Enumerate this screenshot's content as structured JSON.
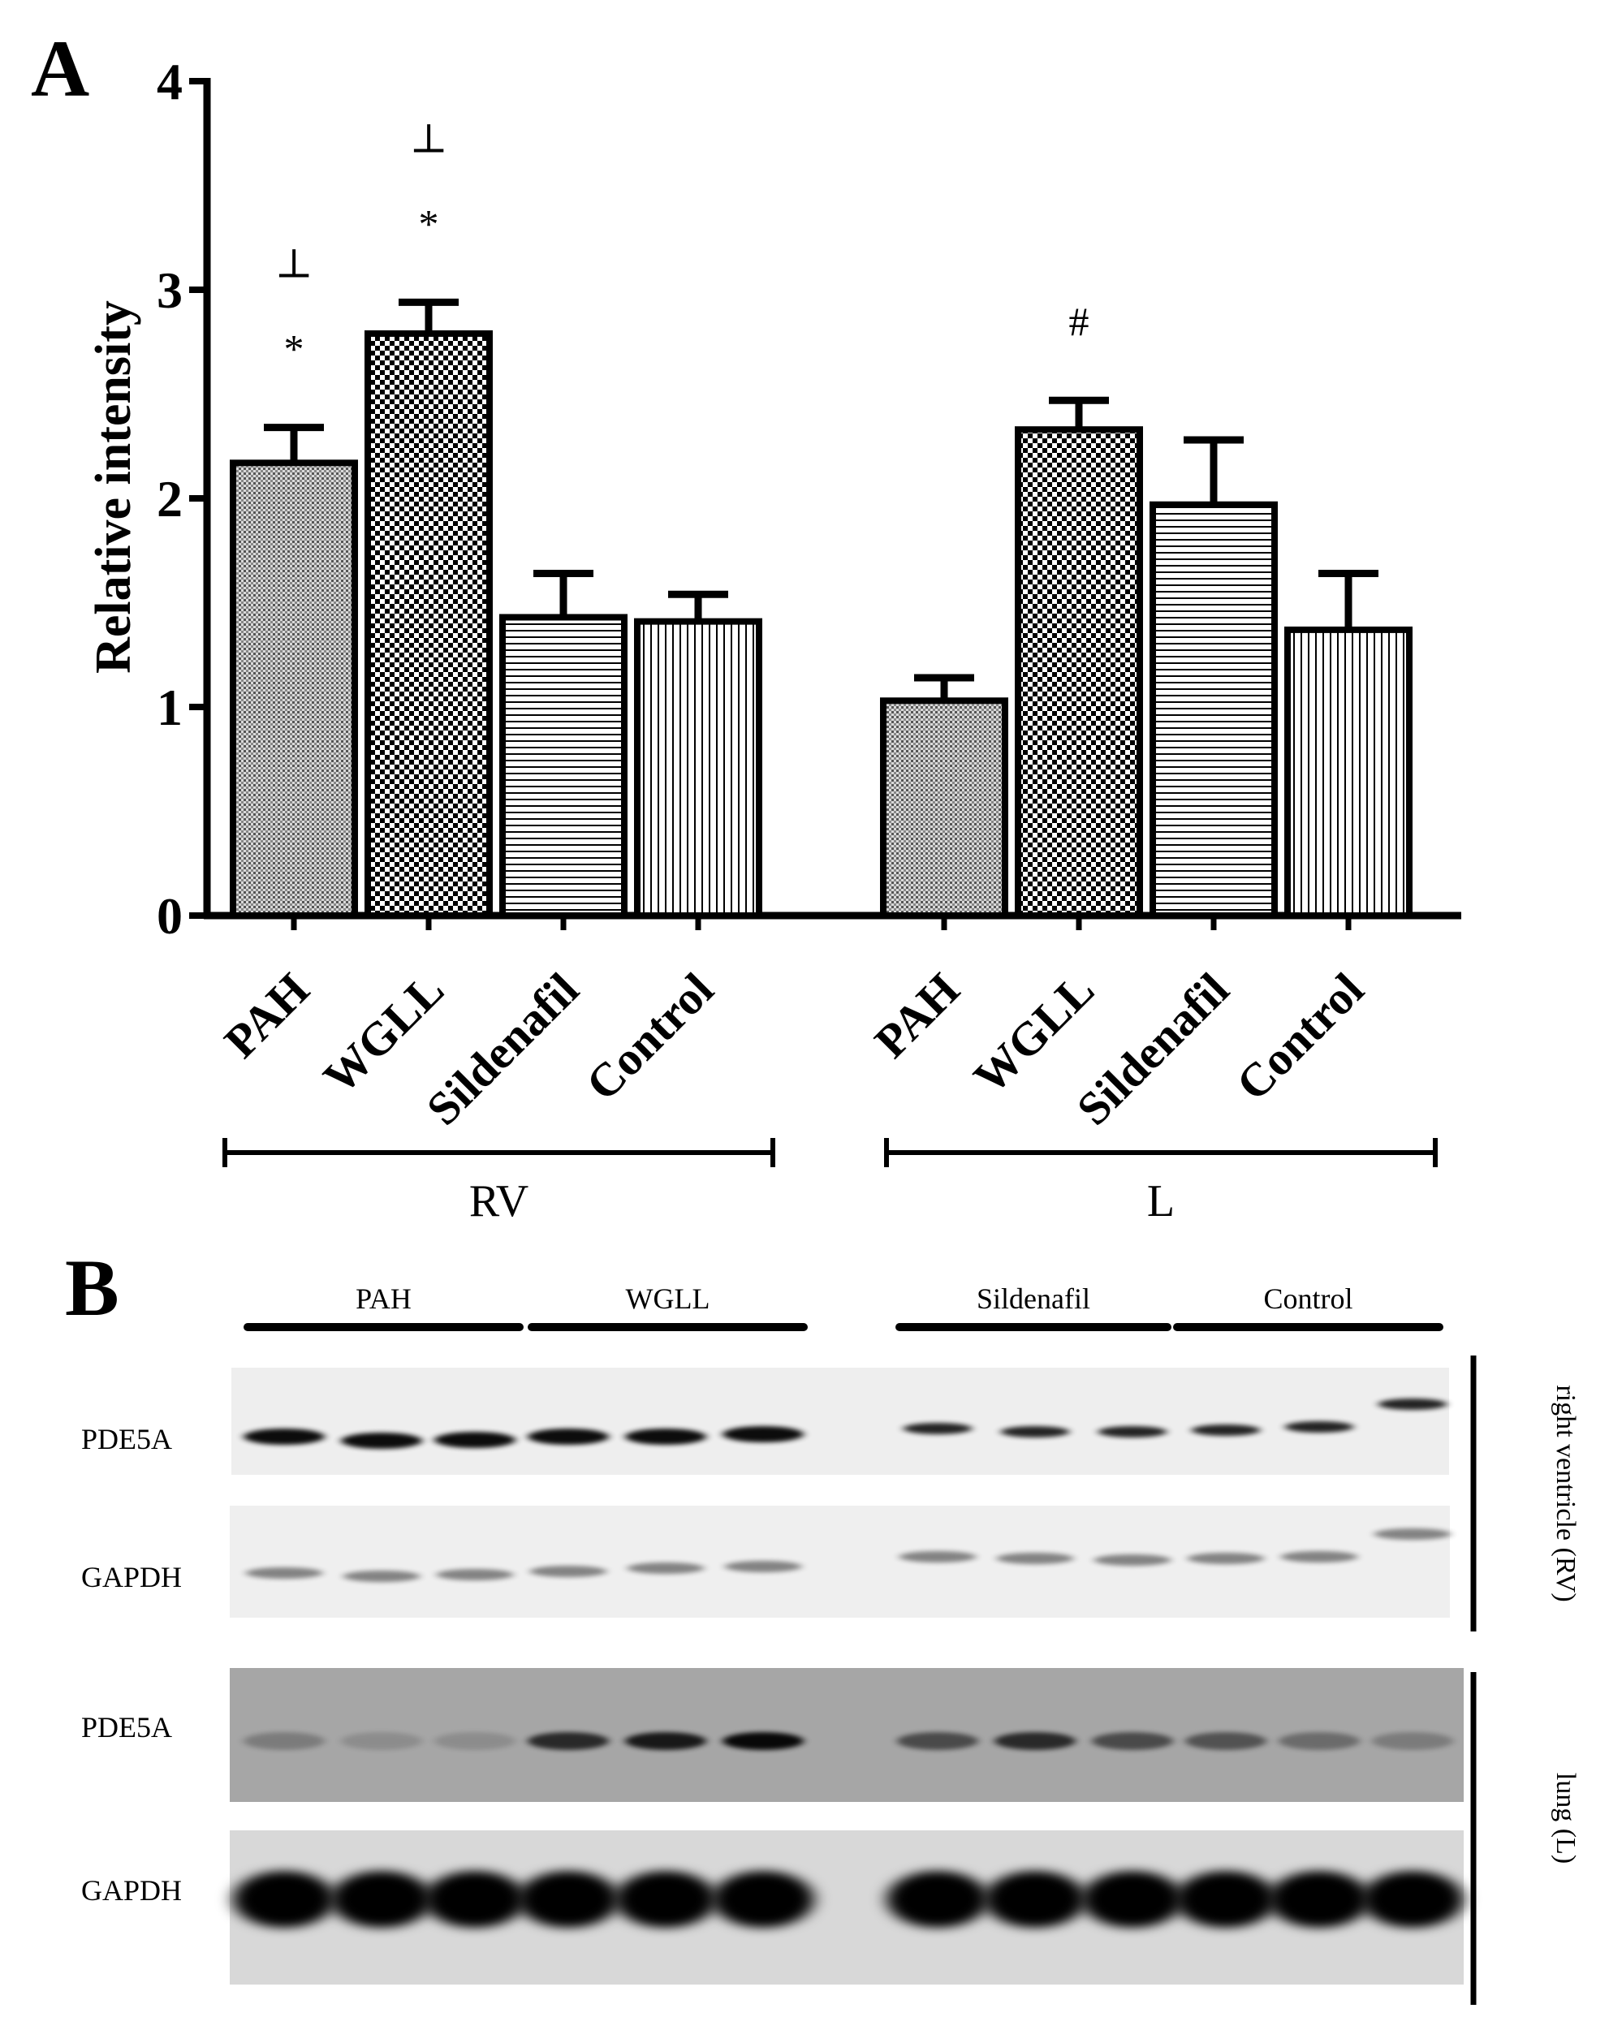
{
  "panel_a": {
    "label": "A"
  },
  "panel_b": {
    "label": "B",
    "group_labels": [
      "PAH",
      "WGLL",
      "Sildenafil",
      "Control"
    ],
    "blots": [
      {
        "label": "PDE5A",
        "tissue": "RV"
      },
      {
        "label": "GAPDH",
        "tissue": "RV"
      },
      {
        "label": "PDE5A",
        "tissue": "L"
      },
      {
        "label": "GAPDH",
        "tissue": "L"
      }
    ],
    "side_labels": [
      "right ventricle (RV)",
      "lung (L)"
    ]
  },
  "chart_data": {
    "type": "bar",
    "ylabel": "Relative intensity",
    "ylim": [
      0,
      4
    ],
    "yticks": [
      0,
      1,
      2,
      3,
      4
    ],
    "categories": [
      "PAH",
      "WGLL",
      "Sildenafil",
      "Control"
    ],
    "groups": [
      {
        "name": "RV",
        "values": [
          2.17,
          2.79,
          1.43,
          1.41
        ],
        "errors": [
          0.17,
          0.15,
          0.21,
          0.13
        ],
        "annotations": [
          [
            "⊥",
            "*"
          ],
          [
            "⊥",
            "*"
          ],
          [],
          []
        ]
      },
      {
        "name": "L",
        "values": [
          1.03,
          2.33,
          1.97,
          1.37
        ],
        "errors": [
          0.11,
          0.14,
          0.31,
          0.27
        ],
        "annotations": [
          [],
          [
            "#"
          ],
          [],
          []
        ]
      }
    ],
    "patterns": [
      "dotted-grey",
      "checkerboard",
      "horizontal-lines",
      "vertical-lines"
    ]
  }
}
